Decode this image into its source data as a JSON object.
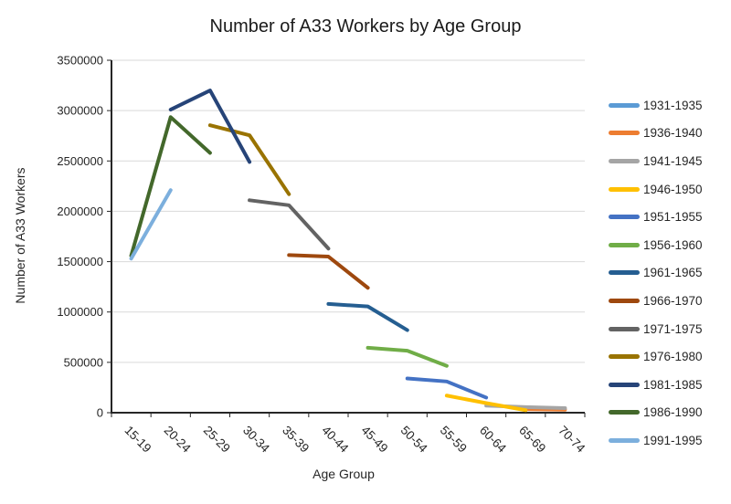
{
  "title": "Number of A33 Workers by Age Group",
  "colors": {
    "grid": "#D9D9D9",
    "axis": "#262626",
    "text": "#262626",
    "background": "#FFFFFF"
  },
  "chart_data": {
    "type": "line",
    "title": "Number of A33 Workers by Age Group",
    "xlabel": "Age Group",
    "ylabel": "Number of A33 Workers",
    "ylim": [
      0,
      3500000
    ],
    "ytick_step": 500000,
    "grid": "horizontal",
    "legend_position": "right",
    "categories": [
      "15-19",
      "20-24",
      "25-29",
      "30-34",
      "35-39",
      "40-44",
      "45-49",
      "50-54",
      "55-59",
      "60-64",
      "65-69",
      "70-74"
    ],
    "series": [
      {
        "name": "1931-1935",
        "color": "#5B9BD5",
        "values": [
          null,
          null,
          null,
          null,
          null,
          null,
          null,
          null,
          null,
          null,
          null,
          15000
        ]
      },
      {
        "name": "1936-1940",
        "color": "#ED7D31",
        "values": [
          null,
          null,
          null,
          null,
          null,
          null,
          null,
          null,
          null,
          null,
          35000,
          30000
        ]
      },
      {
        "name": "1941-1945",
        "color": "#A5A5A5",
        "values": [
          null,
          null,
          null,
          null,
          null,
          null,
          null,
          null,
          null,
          70000,
          55000,
          45000
        ]
      },
      {
        "name": "1946-1950",
        "color": "#FFC000",
        "values": [
          null,
          null,
          null,
          null,
          null,
          null,
          null,
          null,
          170000,
          95000,
          25000,
          null
        ]
      },
      {
        "name": "1951-1955",
        "color": "#4472C4",
        "values": [
          null,
          null,
          null,
          null,
          null,
          null,
          null,
          340000,
          310000,
          150000,
          null,
          null
        ]
      },
      {
        "name": "1956-1960",
        "color": "#70AD47",
        "values": [
          null,
          null,
          null,
          null,
          null,
          null,
          645000,
          615000,
          465000,
          null,
          null,
          null
        ]
      },
      {
        "name": "1961-1965",
        "color": "#255E91",
        "values": [
          null,
          null,
          null,
          null,
          null,
          1080000,
          1055000,
          820000,
          null,
          null,
          null,
          null
        ]
      },
      {
        "name": "1966-1970",
        "color": "#9E480E",
        "values": [
          null,
          null,
          null,
          null,
          1565000,
          1550000,
          1240000,
          null,
          null,
          null,
          null,
          null
        ]
      },
      {
        "name": "1971-1975",
        "color": "#636363",
        "values": [
          null,
          null,
          null,
          2110000,
          2060000,
          1630000,
          null,
          null,
          null,
          null,
          null,
          null
        ]
      },
      {
        "name": "1976-1980",
        "color": "#997300",
        "values": [
          null,
          null,
          2855000,
          2755000,
          2170000,
          null,
          null,
          null,
          null,
          null,
          null,
          null
        ]
      },
      {
        "name": "1981-1985",
        "color": "#264478",
        "values": [
          null,
          3010000,
          3200000,
          2490000,
          null,
          null,
          null,
          null,
          null,
          null,
          null,
          null
        ]
      },
      {
        "name": "1986-1990",
        "color": "#43682B",
        "values": [
          1560000,
          2935000,
          2580000,
          null,
          null,
          null,
          null,
          null,
          null,
          null,
          null,
          null
        ]
      },
      {
        "name": "1991-1995",
        "color": "#7CAFDD",
        "values": [
          1530000,
          2210000,
          null,
          null,
          null,
          null,
          null,
          null,
          null,
          null,
          null,
          null
        ]
      }
    ]
  }
}
